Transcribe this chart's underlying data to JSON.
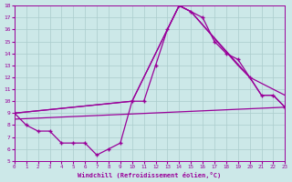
{
  "xlabel": "Windchill (Refroidissement éolien,°C)",
  "xlim": [
    0,
    23
  ],
  "ylim": [
    5,
    18
  ],
  "xticks": [
    0,
    1,
    2,
    3,
    4,
    5,
    6,
    7,
    8,
    9,
    10,
    11,
    12,
    13,
    14,
    15,
    16,
    17,
    18,
    19,
    20,
    21,
    22,
    23
  ],
  "yticks": [
    5,
    6,
    7,
    8,
    9,
    10,
    11,
    12,
    13,
    14,
    15,
    16,
    17,
    18
  ],
  "bg_color": "#cce8e8",
  "grid_color": "#aacccc",
  "line_color": "#990099",
  "line1_x": [
    0,
    1,
    2,
    3,
    4,
    5,
    6,
    7,
    8,
    9,
    10,
    11,
    12,
    13,
    14,
    15,
    16,
    17,
    18,
    19,
    20,
    21,
    22,
    23
  ],
  "line1_y": [
    9.0,
    8.0,
    7.5,
    7.5,
    6.5,
    6.5,
    6.5,
    5.5,
    6.0,
    6.5,
    10.0,
    10.0,
    13.0,
    16.0,
    18.0,
    17.5,
    17.0,
    15.0,
    14.0,
    13.5,
    12.0,
    10.5,
    10.5,
    9.5
  ],
  "line2_x": [
    0,
    10,
    14,
    15,
    20,
    23
  ],
  "line2_y": [
    9.0,
    10.0,
    18.0,
    17.5,
    12.0,
    10.5
  ],
  "line3_x": [
    0,
    10,
    14,
    15,
    19,
    20,
    21,
    22,
    23
  ],
  "line3_y": [
    9.0,
    10.0,
    18.0,
    17.5,
    13.0,
    12.0,
    10.5,
    10.5,
    9.5
  ],
  "line4_x": [
    0,
    23
  ],
  "line4_y": [
    8.5,
    9.5
  ]
}
